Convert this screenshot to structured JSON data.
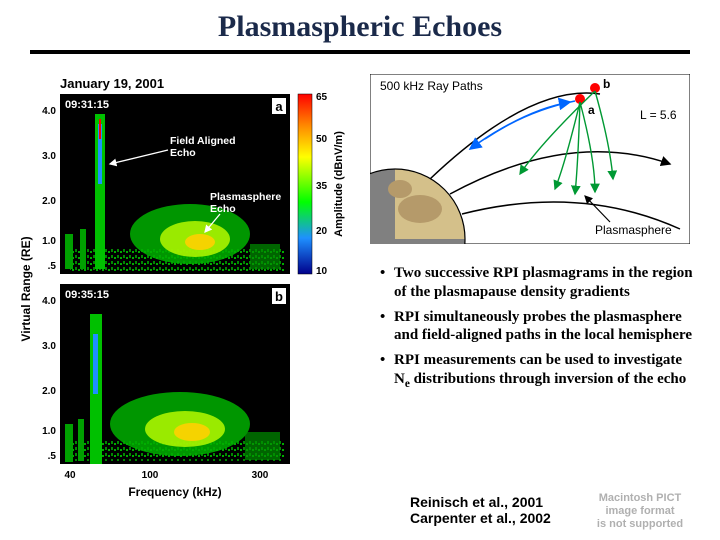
{
  "title": "Plasmaspheric Echoes",
  "plasmagram": {
    "date_label": "January 19, 2001",
    "panel_a": {
      "tag": "a",
      "time": "09:31:15",
      "annotations": {
        "field_aligned": "Field Aligned\nEcho",
        "plasmasphere": "Plasmasphere\nEcho"
      }
    },
    "panel_b": {
      "tag": "b",
      "time": "09:35:15"
    },
    "y_label": "Virtual Range (RE)",
    "y_ticks": [
      ".5",
      "1.0",
      "2.0",
      "3.0",
      "4.0"
    ],
    "x_label": "Frequency (kHz)",
    "x_ticks": [
      "40",
      "100",
      "300"
    ],
    "cbar_label": "Amplitude (dBnV/m)",
    "cbar_ticks": [
      "10",
      "20",
      "35",
      "50",
      "65"
    ],
    "bg": "#000000",
    "colormap": [
      "#00008b",
      "#1e90ff",
      "#00ff00",
      "#ffff00",
      "#ff8c00",
      "#ff0000"
    ]
  },
  "raypath": {
    "title": "500 kHz Ray Paths",
    "point_a": "a",
    "point_b": "b",
    "l_label": "L = 5.6",
    "plasmasphere_label": "Plasmasphere",
    "bg": "#ffffff",
    "earth_land": "#b59a6a",
    "earth_shadow": "#808080",
    "point_color": "#ff0000",
    "ray_color": "#009933",
    "fieldline_color": "#000000",
    "arrow_color": "#0066ff"
  },
  "bullets": [
    "Two successive RPI plasmagrams in the region of the plasmapause density gradients",
    "RPI simultaneously probes the plasmasphere and field-aligned paths in the local hemisphere",
    "RPI measurements can be used to investigate N<sub>e</sub> distributions through inversion of the echo"
  ],
  "citations": [
    "Reinisch et al., 2001",
    "Carpenter et al., 2002"
  ],
  "placeholder_text": "Macintosh PICT\nimage format\nis not supported",
  "colors": {
    "title": "#1b2a4a",
    "rule": "#000000",
    "text": "#000000",
    "placeholder": "#b0b0b0"
  },
  "fonts": {
    "title_size_pt": 30,
    "bullet_size_pt": 15,
    "citation_size_pt": 14
  }
}
